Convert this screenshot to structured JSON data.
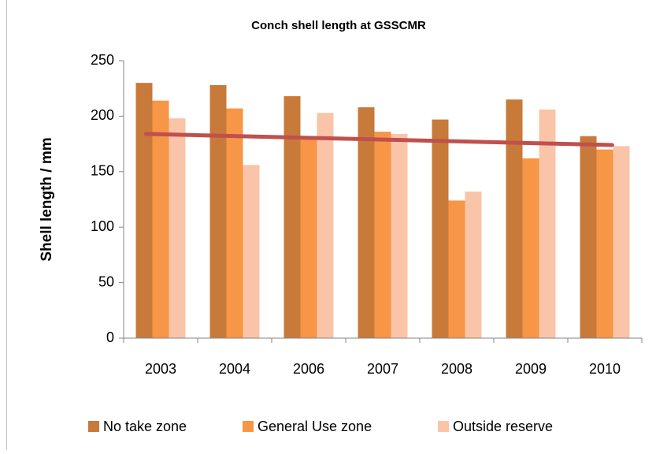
{
  "chart_data": {
    "type": "bar",
    "title": "Conch shell length at GSSCMR",
    "y_label": "Shell length / mm",
    "categories": [
      "2003",
      "2004",
      "2006",
      "2007",
      "2008",
      "2009",
      "2010"
    ],
    "series": [
      {
        "name": "No take zone",
        "color": "#c87a3a",
        "values": [
          230,
          228,
          218,
          208,
          197,
          215,
          182
        ]
      },
      {
        "name": "General Use zone",
        "color": "#f79646",
        "values": [
          214,
          207,
          180,
          186,
          124,
          162,
          170
        ]
      },
      {
        "name": "Outside reserve",
        "color": "#fac4a8",
        "values": [
          198,
          156,
          203,
          184,
          132,
          206,
          173
        ]
      }
    ],
    "trendline": {
      "color": "#c0504d",
      "values": [
        184,
        174
      ]
    },
    "ylim": [
      0,
      250
    ],
    "yticks": [
      0,
      50,
      100,
      150,
      200,
      250
    ],
    "grid": false,
    "legend": "bottom"
  }
}
